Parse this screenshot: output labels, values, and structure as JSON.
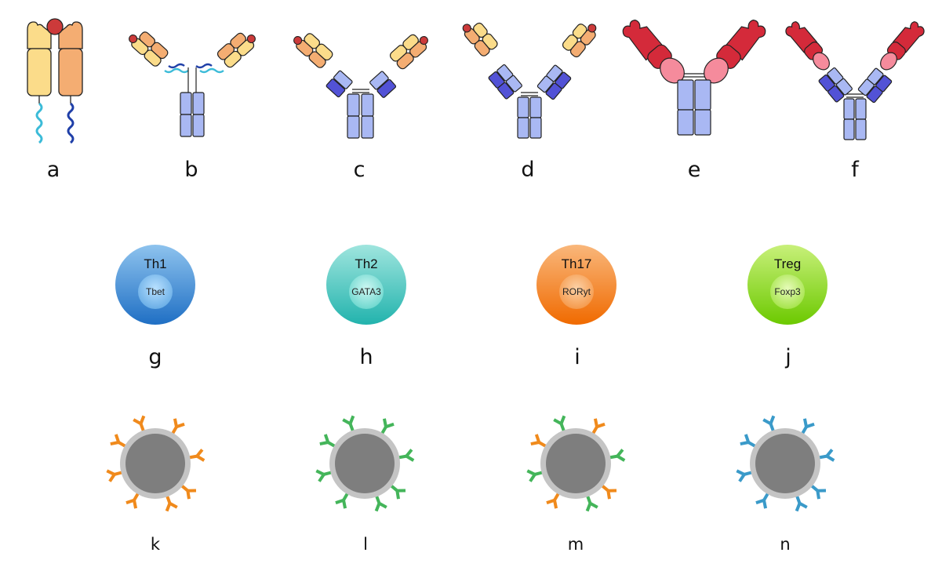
{
  "panels": {
    "top_row": [
      {
        "letter": "a",
        "icon": "t-cell-receptor"
      },
      {
        "letter": "b",
        "icon": "car-first-generation"
      },
      {
        "letter": "c",
        "icon": "car-second-generation"
      },
      {
        "letter": "d",
        "icon": "car-third-generation"
      },
      {
        "letter": "e",
        "icon": "antibody"
      },
      {
        "letter": "f",
        "icon": "bispecific-antibody"
      }
    ],
    "middle_row": [
      {
        "letter": "g",
        "cell": "Th1",
        "factor": "Tbet",
        "color_top": "#8ec3ee",
        "color_bottom": "#1f6fc4"
      },
      {
        "letter": "h",
        "cell": "Th2",
        "factor": "GATA3",
        "color_top": "#9fe5de",
        "color_bottom": "#22b3ad"
      },
      {
        "letter": "i",
        "cell": "Th17",
        "factor": "RORyt",
        "color_top": "#f9b77b",
        "color_bottom": "#f06a00"
      },
      {
        "letter": "j",
        "cell": "Treg",
        "factor": "Foxp3",
        "color_top": "#c8f07a",
        "color_bottom": "#6cc900"
      }
    ],
    "bottom_row": [
      {
        "letter": "k",
        "receptor_colors": [
          "#f08a1c",
          "#f08a1c",
          "#f08a1c",
          "#f08a1c",
          "#f08a1c",
          "#f08a1c",
          "#f08a1c",
          "#f08a1c"
        ]
      },
      {
        "letter": "l",
        "receptor_colors": [
          "#44b55a",
          "#44b55a",
          "#44b55a",
          "#44b55a",
          "#44b55a",
          "#44b55a",
          "#44b55a",
          "#44b55a"
        ]
      },
      {
        "letter": "m",
        "receptor_colors": [
          "#44b55a",
          "#f08a1c",
          "#44b55a",
          "#f08a1c",
          "#44b55a",
          "#f08a1c",
          "#44b55a",
          "#f08a1c"
        ]
      },
      {
        "letter": "n",
        "receptor_colors": [
          "#3a9ac9",
          "#3a9ac9",
          "#3a9ac9",
          "#3a9ac9",
          "#3a9ac9",
          "#3a9ac9",
          "#3a9ac9",
          "#3a9ac9"
        ]
      }
    ]
  },
  "colors": {
    "light_yellow": "#fbdc8a",
    "light_orange": "#f4ad72",
    "antigen_red": "#cc3a3a",
    "light_blue": "#a9b8f3",
    "dark_blue": "#5252d6",
    "antibody_red": "#d42a3a",
    "antibody_pink": "#f58b9c",
    "bead_core": "#7e7e7e",
    "bead_rim": "#c4c4c4"
  }
}
